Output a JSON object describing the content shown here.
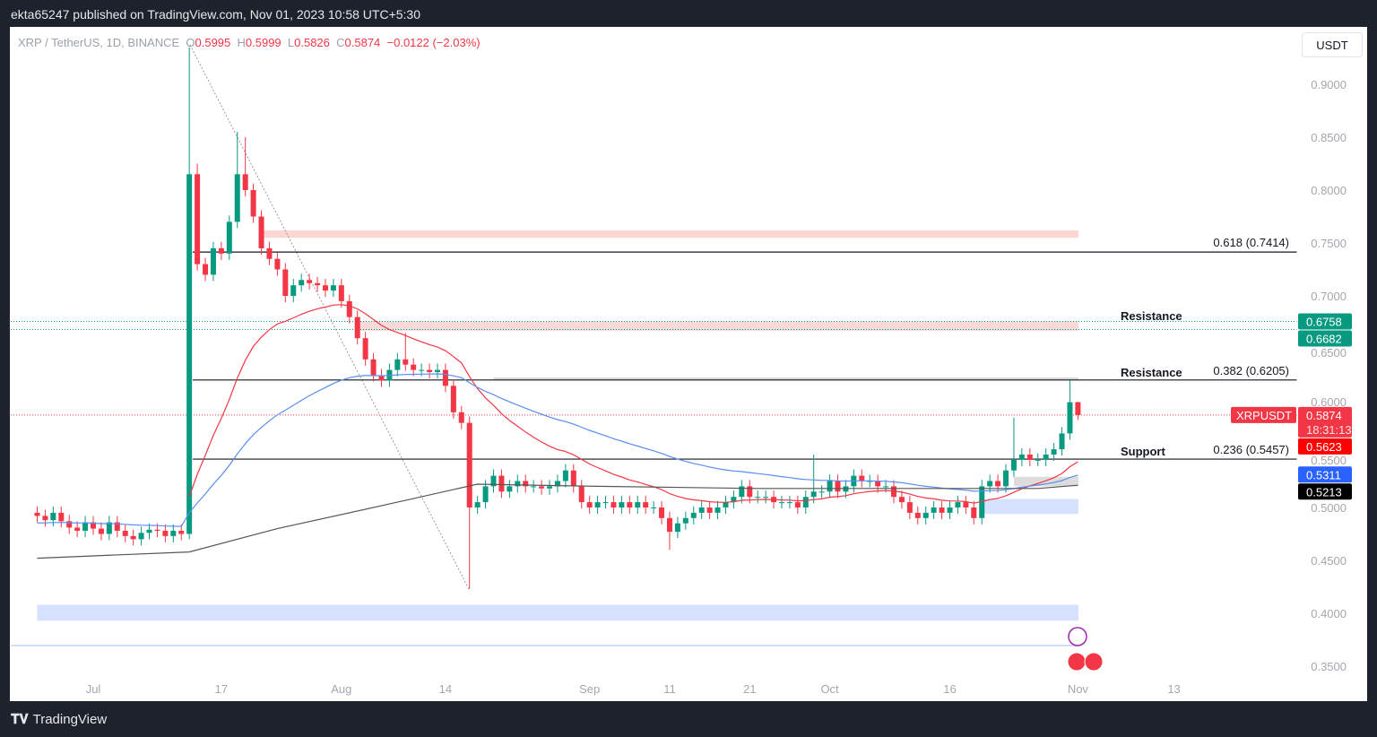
{
  "header": {
    "publish_line": "ekta65247 published on TradingView.com, Nov 01, 2023 10:58 UTC+5:30"
  },
  "legend": {
    "symbol": "XRP / TetherUS, 1D, BINANCE",
    "o_label": "O",
    "o": "0.5995",
    "h_label": "H",
    "h": "0.5999",
    "l_label": "L",
    "l": "0.5826",
    "c_label": "C",
    "c": "0.5874",
    "change": "−0.0122 (−2.03%)"
  },
  "currency_button": "USDT",
  "footer": {
    "brand": "TradingView"
  },
  "colors": {
    "up": "#089981",
    "down": "#f23645",
    "ema_short": "#f23645",
    "ma_mid": "#5b8def",
    "ma_long": "#555555"
  },
  "chart_data": {
    "type": "candlestick",
    "symbol": "XRPUSDT",
    "start_date": "2023-06-24",
    "ylim": [
      0.33,
      0.95
    ],
    "y_ticks": [
      "0.9000",
      "0.8500",
      "0.8000",
      "0.7500",
      "0.7000",
      "0.6500",
      "0.6000",
      "0.5500",
      "0.5000",
      "0.4500",
      "0.4000",
      "0.3500"
    ],
    "x_ticks": [
      {
        "label": "Jul",
        "day": 7
      },
      {
        "label": "17",
        "day": 23
      },
      {
        "label": "Aug",
        "day": 38
      },
      {
        "label": "14",
        "day": 51
      },
      {
        "label": "Sep",
        "day": 69
      },
      {
        "label": "11",
        "day": 79
      },
      {
        "label": "21",
        "day": 89
      },
      {
        "label": "Oct",
        "day": 99
      },
      {
        "label": "16",
        "day": 114
      },
      {
        "label": "Nov",
        "day": 130
      },
      {
        "label": "13",
        "day": 142
      }
    ],
    "first_open": 0.495,
    "close": [
      0.492,
      0.488,
      0.495,
      0.487,
      0.481,
      0.478,
      0.486,
      0.48,
      0.475,
      0.486,
      0.478,
      0.473,
      0.47,
      0.476,
      0.479,
      0.478,
      0.473,
      0.478,
      0.475,
      0.815,
      0.73,
      0.72,
      0.745,
      0.74,
      0.77,
      0.815,
      0.8,
      0.775,
      0.745,
      0.735,
      0.725,
      0.7,
      0.71,
      0.715,
      0.712,
      0.71,
      0.705,
      0.71,
      0.695,
      0.68,
      0.66,
      0.64,
      0.625,
      0.62,
      0.63,
      0.64,
      0.635,
      0.63,
      0.63,
      0.628,
      0.63,
      0.615,
      0.59,
      0.58,
      0.5,
      0.505,
      0.52,
      0.53,
      0.515,
      0.52,
      0.525,
      0.52,
      0.52,
      0.518,
      0.52,
      0.525,
      0.535,
      0.52,
      0.505,
      0.5,
      0.505,
      0.505,
      0.5,
      0.505,
      0.5,
      0.505,
      0.5,
      0.5,
      0.49,
      0.477,
      0.485,
      0.49,
      0.495,
      0.5,
      0.495,
      0.5,
      0.505,
      0.51,
      0.52,
      0.51,
      0.51,
      0.51,
      0.505,
      0.505,
      0.505,
      0.5,
      0.51,
      0.515,
      0.515,
      0.525,
      0.515,
      0.52,
      0.53,
      0.525,
      0.525,
      0.52,
      0.52,
      0.51,
      0.505,
      0.495,
      0.49,
      0.495,
      0.5,
      0.495,
      0.5,
      0.505,
      0.5,
      0.49,
      0.52,
      0.525,
      0.52,
      0.535,
      0.545,
      0.55,
      0.545,
      0.545,
      0.55,
      0.555,
      0.57,
      0.5995,
      0.5874
    ],
    "wick_overrides": [
      {
        "day": 19,
        "high": 0.935,
        "low": 0.47
      },
      {
        "day": 20,
        "high": 0.825
      },
      {
        "day": 25,
        "high": 0.855
      },
      {
        "day": 26,
        "high": 0.85
      },
      {
        "day": 46,
        "high": 0.665
      },
      {
        "day": 54,
        "low": 0.423
      },
      {
        "day": 79,
        "low": 0.46
      },
      {
        "day": 97,
        "high": 0.55
      },
      {
        "day": 122,
        "high": 0.585
      },
      {
        "day": 129,
        "high": 0.62
      },
      {
        "day": 130,
        "high": 0.5999,
        "low": 0.5826
      }
    ],
    "ma_long": [
      [
        0,
        0.452
      ],
      [
        19,
        0.458
      ],
      [
        30,
        0.48
      ],
      [
        45,
        0.505
      ],
      [
        55,
        0.522
      ],
      [
        70,
        0.52
      ],
      [
        90,
        0.518
      ],
      [
        110,
        0.518
      ],
      [
        125,
        0.518
      ],
      [
        130,
        0.521
      ]
    ],
    "ema_short_period": 20,
    "ma_mid_period": 50,
    "levels": [
      {
        "label": "0.618 (0.7414)",
        "value": 0.7414
      },
      {
        "label": "0.382 (0.6205)",
        "value": 0.6205
      },
      {
        "label": "0.236 (0.5457)",
        "value": 0.5457
      }
    ],
    "annotations": [
      {
        "text": "Resistance",
        "value": 0.672
      },
      {
        "text": "Resistance",
        "value": 0.6205
      },
      {
        "text": "Support",
        "value": 0.5457
      }
    ],
    "zones": [
      {
        "from": 0.755,
        "to": 0.762,
        "color": "#fcd5d5",
        "start_day": 28
      },
      {
        "from": 0.667,
        "to": 0.676,
        "color": "#fbd9d9",
        "start_day": 40
      },
      {
        "from": 0.62,
        "to": 0.623,
        "color": "#d9d9d9",
        "start_day": 57
      },
      {
        "from": 0.52,
        "to": 0.529,
        "color": "#dcdcdc",
        "start_day": 122
      },
      {
        "from": 0.494,
        "to": 0.508,
        "color": "#d6e0ff",
        "start_day": 118
      },
      {
        "from": 0.393,
        "to": 0.408,
        "color": "#d6e0ff",
        "start_day": 0
      }
    ],
    "price_labels": [
      {
        "text": "0.6758",
        "value": 0.6758,
        "color": "#089981"
      },
      {
        "text": "0.6682",
        "value": 0.6682,
        "color": "#089981"
      },
      {
        "text": "0.5874",
        "value": 0.5874,
        "color": "#f23645",
        "timer": "18:31:13",
        "tag": "XRPUSDT"
      },
      {
        "text": "0.5623",
        "value": 0.5623,
        "color": "#ff0000"
      },
      {
        "text": "0.5311",
        "value": 0.5311,
        "color": "#2962ff"
      },
      {
        "text": "0.5213",
        "value": 0.5213,
        "color": "#000000"
      }
    ]
  }
}
